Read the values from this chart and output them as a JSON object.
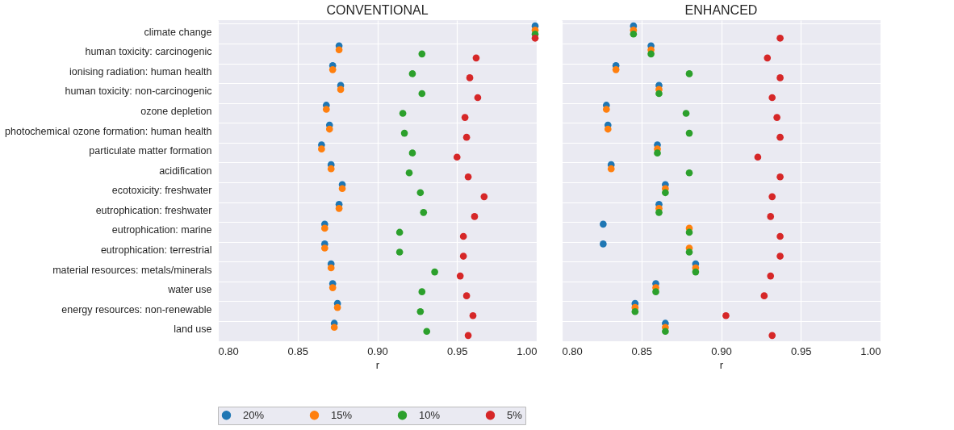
{
  "chart_data": [
    {
      "type": "scatter",
      "orientation": "horizontal",
      "title": "CONVENTIONAL",
      "xlabel": "r",
      "marker": "circle",
      "grid": true,
      "legend": "bottom",
      "categories": [
        "climate change",
        "human toxicity: carcinogenic",
        "ionising radiation: human health",
        "human toxicity: non-carcinogenic",
        "ozone depletion",
        "photochemical ozone formation: human health",
        "particulate matter formation",
        "acidification",
        "ecotoxicity: freshwater",
        "eutrophication: freshwater",
        "eutrophication: marine",
        "eutrophication: terrestrial",
        "material resources: metals/minerals",
        "water use",
        "energy resources: non-renewable",
        "land use"
      ],
      "xlim": [
        0.8,
        1.0
      ],
      "xticks": [
        {
          "value": 0.8,
          "label": "0.80"
        },
        {
          "value": 0.85,
          "label": "0.85"
        },
        {
          "value": 0.9,
          "label": "0.90"
        },
        {
          "value": 0.95,
          "label": "0.95"
        },
        {
          "value": 1.0,
          "label": "1.00"
        }
      ],
      "series": [
        {
          "name": "20%",
          "color": "#1f77b4",
          "values": [
            0.999,
            0.876,
            0.872,
            0.877,
            0.868,
            0.87,
            0.865,
            0.871,
            0.878,
            0.876,
            0.867,
            0.867,
            0.871,
            0.872,
            0.875,
            0.873
          ]
        },
        {
          "name": "15%",
          "color": "#ff7f0e",
          "values": [
            0.999,
            0.876,
            0.872,
            0.877,
            0.868,
            0.87,
            0.865,
            0.871,
            0.878,
            0.876,
            0.867,
            0.867,
            0.871,
            0.872,
            0.875,
            0.873
          ]
        },
        {
          "name": "10%",
          "color": "#2ca02c",
          "values": [
            0.999,
            0.928,
            0.922,
            0.928,
            0.916,
            0.917,
            0.922,
            0.92,
            0.927,
            0.929,
            0.914,
            0.914,
            0.936,
            0.928,
            0.927,
            0.931
          ]
        },
        {
          "name": "5%",
          "color": "#d62728",
          "values": [
            0.999,
            0.962,
            0.958,
            0.963,
            0.955,
            0.956,
            0.95,
            0.957,
            0.967,
            0.961,
            0.954,
            0.954,
            0.952,
            0.956,
            0.96,
            0.957
          ]
        }
      ]
    },
    {
      "type": "scatter",
      "orientation": "horizontal",
      "title": "ENHANCED",
      "xlabel": "r",
      "marker": "circle",
      "grid": true,
      "legend": "bottom",
      "tick_labels": "x",
      "categories": [
        "climate change",
        "human toxicity: carcinogenic",
        "ionising radiation: human health",
        "human toxicity: non-carcinogenic",
        "ozone depletion",
        "photochemical ozone formation: human health",
        "particulate matter formation",
        "acidification",
        "ecotoxicity: freshwater",
        "eutrophication: freshwater",
        "eutrophication: marine",
        "eutrophication: terrestrial",
        "material resources: metals/minerals",
        "water use",
        "energy resources: non-renewable",
        "land use"
      ],
      "xlim": [
        0.8,
        1.0
      ],
      "xticks": [
        {
          "value": 0.8,
          "label": "0.80"
        },
        {
          "value": 0.85,
          "label": "0.85"
        },
        {
          "value": 0.9,
          "label": "0.90"
        },
        {
          "value": 0.95,
          "label": "0.95"
        },
        {
          "value": 1.0,
          "label": "1.00"
        }
      ],
      "series": [
        {
          "name": "20%",
          "color": "#1f77b4",
          "values": [
            0.845,
            0.856,
            0.834,
            0.861,
            0.828,
            0.829,
            0.86,
            0.831,
            0.865,
            0.861,
            0.826,
            0.826,
            0.884,
            0.859,
            0.846,
            0.865
          ]
        },
        {
          "name": "15%",
          "color": "#ff7f0e",
          "values": [
            0.845,
            0.856,
            0.834,
            0.861,
            0.828,
            0.829,
            0.86,
            0.831,
            0.865,
            0.861,
            0.88,
            0.88,
            0.884,
            0.859,
            0.846,
            0.865
          ]
        },
        {
          "name": "10%",
          "color": "#2ca02c",
          "values": [
            0.845,
            0.856,
            0.88,
            0.861,
            0.878,
            0.88,
            0.86,
            0.88,
            0.865,
            0.861,
            0.88,
            0.88,
            0.884,
            0.859,
            0.846,
            0.865
          ]
        },
        {
          "name": "5%",
          "color": "#d62728",
          "values": [
            0.937,
            0.929,
            0.937,
            0.932,
            0.935,
            0.937,
            0.923,
            0.937,
            0.932,
            0.931,
            0.937,
            0.937,
            0.931,
            0.927,
            0.903,
            0.932
          ]
        }
      ]
    }
  ]
}
